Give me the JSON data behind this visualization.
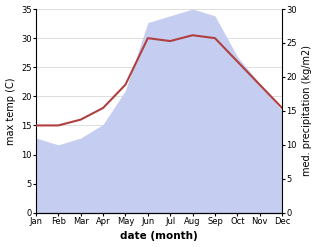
{
  "months": [
    "Jan",
    "Feb",
    "Mar",
    "Apr",
    "May",
    "Jun",
    "Jul",
    "Aug",
    "Sep",
    "Oct",
    "Nov",
    "Dec"
  ],
  "x": [
    0,
    1,
    2,
    3,
    4,
    5,
    6,
    7,
    8,
    9,
    10,
    11
  ],
  "temp": [
    15,
    15,
    16,
    18,
    22,
    30,
    29.5,
    30.5,
    30,
    26,
    22,
    18
  ],
  "precip": [
    11,
    10,
    11,
    13,
    18,
    28,
    29,
    30,
    29,
    23,
    19,
    15
  ],
  "temp_color": "#b04040",
  "precip_fill_color": "#c5cdf0",
  "ylabel_left": "max temp (C)",
  "ylabel_right": "med. precipitation (kg/m2)",
  "xlabel": "date (month)",
  "ylim_left": [
    0,
    35
  ],
  "ylim_right": [
    0,
    30
  ],
  "yticks_left": [
    0,
    5,
    10,
    15,
    20,
    25,
    30,
    35
  ],
  "yticks_right": [
    0,
    5,
    10,
    15,
    20,
    25,
    30
  ],
  "background_color": "#ffffff",
  "grid_color": "#d0d0d0"
}
